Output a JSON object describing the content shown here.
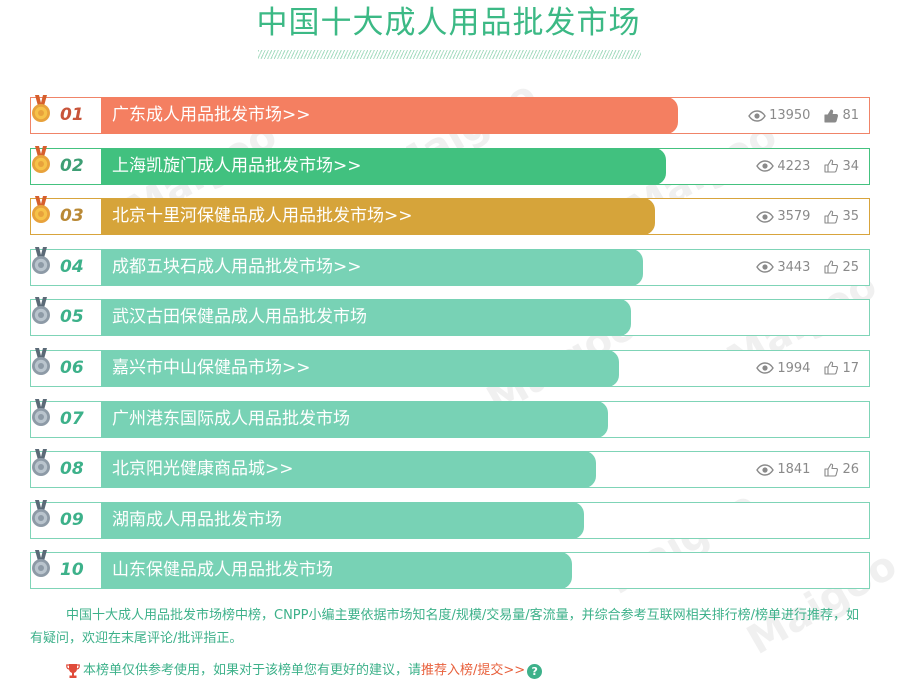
{
  "title": "中国十大成人用品批发市场",
  "watermark": "Maigoo",
  "items": [
    {
      "rank": "01",
      "name": "广东成人用品批发市场>>",
      "views": "13950",
      "likes": "81",
      "bar_fraction": 0.687,
      "medal": "gold",
      "has_stats": true,
      "like_filled": true
    },
    {
      "rank": "02",
      "name": "上海凯旋门成人用品批发市场>>",
      "views": "4223",
      "likes": "34",
      "bar_fraction": 0.673,
      "medal": "gold",
      "has_stats": true,
      "like_filled": false
    },
    {
      "rank": "03",
      "name": "北京十里河保健品成人用品批发市场>>",
      "views": "3579",
      "likes": "35",
      "bar_fraction": 0.659,
      "medal": "gold",
      "has_stats": true,
      "like_filled": false
    },
    {
      "rank": "04",
      "name": "成都五块石成人用品批发市场>>",
      "views": "3443",
      "likes": "25",
      "bar_fraction": 0.645,
      "medal": "silver",
      "has_stats": true,
      "like_filled": false
    },
    {
      "rank": "05",
      "name": "武汉古田保健品成人用品批发市场",
      "views": "",
      "likes": "",
      "bar_fraction": 0.631,
      "medal": "silver",
      "has_stats": false,
      "like_filled": false
    },
    {
      "rank": "06",
      "name": "嘉兴市中山保健品市场>>",
      "views": "1994",
      "likes": "17",
      "bar_fraction": 0.617,
      "medal": "silver",
      "has_stats": true,
      "like_filled": false
    },
    {
      "rank": "07",
      "name": "广州港东国际成人用品批发市场",
      "views": "",
      "likes": "",
      "bar_fraction": 0.603,
      "medal": "silver",
      "has_stats": false,
      "like_filled": false
    },
    {
      "rank": "08",
      "name": "北京阳光健康商品城>>",
      "views": "1841",
      "likes": "26",
      "bar_fraction": 0.589,
      "medal": "silver",
      "has_stats": true,
      "like_filled": false
    },
    {
      "rank": "09",
      "name": "湖南成人用品批发市场",
      "views": "",
      "likes": "",
      "bar_fraction": 0.575,
      "medal": "silver",
      "has_stats": false,
      "like_filled": false
    },
    {
      "rank": "10",
      "name": "山东保健品成人用品批发市场",
      "views": "",
      "likes": "",
      "bar_fraction": 0.561,
      "medal": "silver",
      "has_stats": false,
      "like_filled": false
    }
  ],
  "description": "中国十大成人用品批发市场榜中榜，CNPP小编主要依据市场知名度/规模/交易量/客流量，并综合参考互联网相关排行榜/榜单进行推荐，如有疑问，欢迎在末尾评论/批评指正。",
  "note": {
    "text": "本榜单仅供参考使用，如果对于该榜单您有更好的建议，请",
    "link": "推荐入榜/提交>>",
    "help": "?"
  },
  "colors": {
    "accent": "#3cb985",
    "rank1": "#f47f61",
    "rank2": "#41c17f",
    "rank3": "#d6a43a",
    "default_bar": "#78d2b5"
  }
}
